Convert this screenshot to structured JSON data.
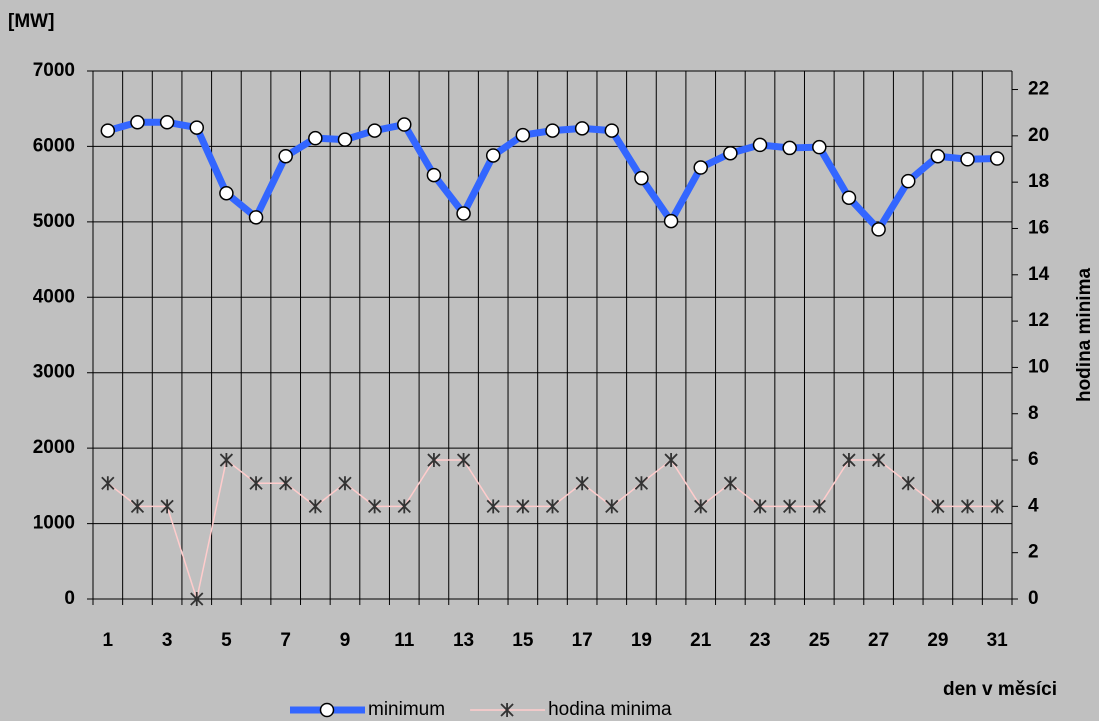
{
  "chart_data": {
    "type": "line",
    "y_axis_label": "[MW]",
    "y2_axis_label": "hodina minima",
    "x_axis_label": "den v měsíci",
    "categories": [
      1,
      null,
      3,
      null,
      5,
      null,
      7,
      null,
      9,
      null,
      11,
      null,
      13,
      null,
      15,
      null,
      17,
      null,
      19,
      null,
      21,
      null,
      23,
      null,
      25,
      null,
      27,
      null,
      29,
      null,
      31
    ],
    "series": [
      {
        "name": "minimum",
        "color": "#3366ff",
        "marker": "circle",
        "values": [
          6210,
          6320,
          6320,
          6250,
          5380,
          5060,
          5870,
          6110,
          6090,
          6210,
          6290,
          5620,
          5110,
          5880,
          6150,
          6210,
          6240,
          6210,
          5580,
          5010,
          5720,
          5910,
          6020,
          5980,
          5990,
          5320,
          4900,
          5540,
          5870,
          5830,
          5840
        ]
      },
      {
        "name": "hodina minima",
        "color": "#ffcccc",
        "marker": "asterisk",
        "axis": "y2",
        "values": [
          5,
          4,
          4,
          0,
          6,
          5,
          5,
          4,
          5,
          4,
          4,
          6,
          6,
          4,
          4,
          4,
          5,
          4,
          5,
          6,
          4,
          5,
          4,
          4,
          4,
          6,
          6,
          5,
          4,
          4,
          4
        ]
      }
    ],
    "ylim": [
      0,
      7000
    ],
    "yticks": [
      0,
      1000,
      2000,
      3000,
      4000,
      5000,
      6000,
      7000
    ],
    "y2lim": [
      0,
      22.8
    ],
    "y2ticks": [
      0,
      2,
      4,
      6,
      8,
      10,
      12,
      14,
      16,
      18,
      20,
      22
    ],
    "grid": true,
    "legend": "bottom"
  }
}
